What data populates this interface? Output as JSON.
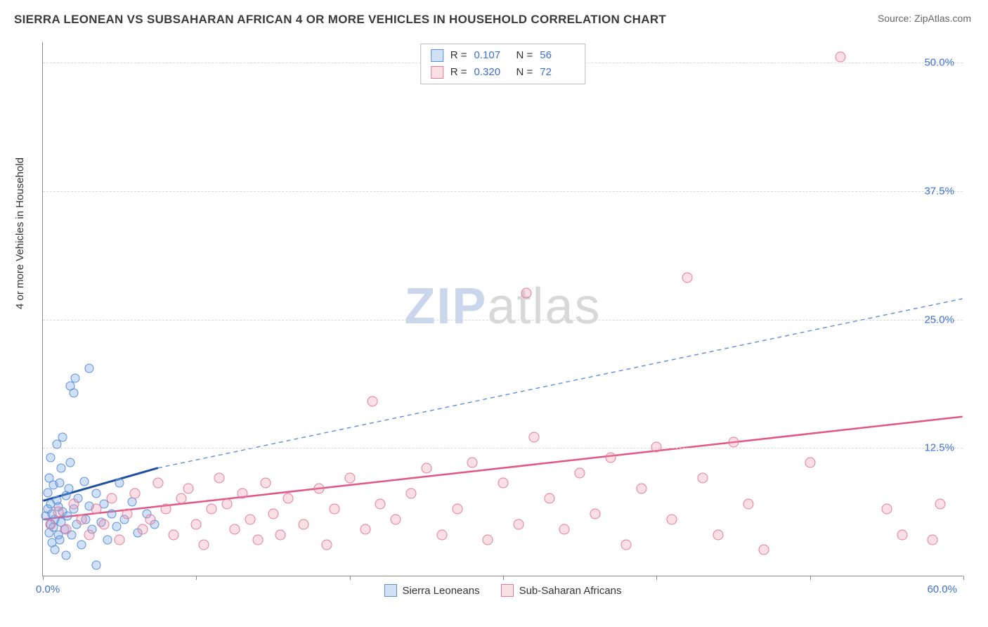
{
  "title": "SIERRA LEONEAN VS SUBSAHARAN AFRICAN 4 OR MORE VEHICLES IN HOUSEHOLD CORRELATION CHART",
  "source": "Source: ZipAtlas.com",
  "y_axis_label": "4 or more Vehicles in Household",
  "watermark": {
    "z": "Z",
    "ip": "IP",
    "atlas": "atlas"
  },
  "chart": {
    "type": "scatter",
    "xlim": [
      0,
      60
    ],
    "ylim": [
      0,
      52
    ],
    "x_min_label": "0.0%",
    "x_max_label": "60.0%",
    "x_ticks": [
      0,
      10,
      20,
      30,
      40,
      50,
      60
    ],
    "y_ticks": [
      {
        "v": 12.5,
        "label": "12.5%"
      },
      {
        "v": 25.0,
        "label": "25.0%"
      },
      {
        "v": 37.5,
        "label": "37.5%"
      },
      {
        "v": 50.0,
        "label": "50.0%"
      }
    ],
    "grid_color": "#d8d8d8",
    "background": "#ffffff",
    "series": [
      {
        "name": "Sierra Leoneans",
        "fill": "rgba(120,165,230,0.35)",
        "stroke": "#5a8fd8",
        "r_value": "0.107",
        "n_value": "56",
        "trend": {
          "solid": {
            "x1": 0,
            "y1": 7.3,
            "x2": 7.5,
            "y2": 10.5,
            "color": "#1e4fa3",
            "width": 3
          },
          "dashed": {
            "x1": 7.5,
            "y1": 10.5,
            "x2": 60,
            "y2": 27.0,
            "color": "#5a8fd8",
            "width": 1.4,
            "dash": "6 5"
          }
        },
        "points": [
          [
            0.2,
            5.8
          ],
          [
            0.3,
            8.1
          ],
          [
            0.3,
            6.5
          ],
          [
            0.4,
            4.2
          ],
          [
            0.4,
            9.5
          ],
          [
            0.5,
            7.0
          ],
          [
            0.5,
            5.0
          ],
          [
            0.5,
            11.5
          ],
          [
            0.6,
            3.2
          ],
          [
            0.6,
            6.0
          ],
          [
            0.7,
            4.7
          ],
          [
            0.7,
            8.8
          ],
          [
            0.8,
            2.5
          ],
          [
            0.8,
            5.5
          ],
          [
            0.9,
            7.3
          ],
          [
            0.9,
            12.8
          ],
          [
            1.0,
            4.0
          ],
          [
            1.0,
            6.7
          ],
          [
            1.1,
            9.0
          ],
          [
            1.1,
            3.5
          ],
          [
            1.2,
            5.2
          ],
          [
            1.2,
            10.5
          ],
          [
            1.3,
            6.2
          ],
          [
            1.3,
            13.5
          ],
          [
            1.4,
            4.5
          ],
          [
            1.5,
            7.8
          ],
          [
            1.5,
            2.0
          ],
          [
            1.6,
            5.8
          ],
          [
            1.7,
            8.5
          ],
          [
            1.8,
            11.0
          ],
          [
            1.8,
            18.5
          ],
          [
            1.9,
            4.0
          ],
          [
            2.0,
            6.5
          ],
          [
            2.0,
            17.8
          ],
          [
            2.1,
            19.2
          ],
          [
            2.2,
            5.0
          ],
          [
            2.3,
            7.5
          ],
          [
            2.5,
            3.0
          ],
          [
            2.7,
            9.2
          ],
          [
            2.8,
            5.5
          ],
          [
            3.0,
            6.8
          ],
          [
            3.0,
            20.2
          ],
          [
            3.2,
            4.5
          ],
          [
            3.5,
            8.0
          ],
          [
            3.5,
            1.0
          ],
          [
            3.8,
            5.2
          ],
          [
            4.0,
            7.0
          ],
          [
            4.2,
            3.5
          ],
          [
            4.5,
            6.0
          ],
          [
            4.8,
            4.8
          ],
          [
            5.0,
            9.0
          ],
          [
            5.3,
            5.5
          ],
          [
            5.8,
            7.2
          ],
          [
            6.2,
            4.2
          ],
          [
            6.8,
            6.0
          ],
          [
            7.3,
            5.0
          ]
        ]
      },
      {
        "name": "Sub-Saharan Africans",
        "fill": "rgba(240,150,175,0.30)",
        "stroke": "#e47a9a",
        "r_value": "0.320",
        "n_value": "72",
        "trend": {
          "solid": {
            "x1": 0,
            "y1": 5.5,
            "x2": 60,
            "y2": 15.5,
            "color": "#e25585",
            "width": 2.5
          }
        },
        "points": [
          [
            0.5,
            5.0
          ],
          [
            1.0,
            6.2
          ],
          [
            1.5,
            4.5
          ],
          [
            2.0,
            7.0
          ],
          [
            2.5,
            5.5
          ],
          [
            3.0,
            4.0
          ],
          [
            3.5,
            6.5
          ],
          [
            4.0,
            5.0
          ],
          [
            4.5,
            7.5
          ],
          [
            5.0,
            3.5
          ],
          [
            5.5,
            6.0
          ],
          [
            6.0,
            8.0
          ],
          [
            6.5,
            4.5
          ],
          [
            7.0,
            5.5
          ],
          [
            7.5,
            9.0
          ],
          [
            8.0,
            6.5
          ],
          [
            8.5,
            4.0
          ],
          [
            9.0,
            7.5
          ],
          [
            9.5,
            8.5
          ],
          [
            10.0,
            5.0
          ],
          [
            10.5,
            3.0
          ],
          [
            11.0,
            6.5
          ],
          [
            11.5,
            9.5
          ],
          [
            12.0,
            7.0
          ],
          [
            12.5,
            4.5
          ],
          [
            13.0,
            8.0
          ],
          [
            13.5,
            5.5
          ],
          [
            14.0,
            3.5
          ],
          [
            14.5,
            9.0
          ],
          [
            15.0,
            6.0
          ],
          [
            15.5,
            4.0
          ],
          [
            16.0,
            7.5
          ],
          [
            17.0,
            5.0
          ],
          [
            18.0,
            8.5
          ],
          [
            18.5,
            3.0
          ],
          [
            19.0,
            6.5
          ],
          [
            20.0,
            9.5
          ],
          [
            21.0,
            4.5
          ],
          [
            21.5,
            17.0
          ],
          [
            22.0,
            7.0
          ],
          [
            23.0,
            5.5
          ],
          [
            24.0,
            8.0
          ],
          [
            25.0,
            10.5
          ],
          [
            26.0,
            4.0
          ],
          [
            27.0,
            6.5
          ],
          [
            28.0,
            11.0
          ],
          [
            29.0,
            3.5
          ],
          [
            30.0,
            9.0
          ],
          [
            31.0,
            5.0
          ],
          [
            31.5,
            27.5
          ],
          [
            32.0,
            13.5
          ],
          [
            33.0,
            7.5
          ],
          [
            34.0,
            4.5
          ],
          [
            35.0,
            10.0
          ],
          [
            36.0,
            6.0
          ],
          [
            37.0,
            11.5
          ],
          [
            38.0,
            3.0
          ],
          [
            39.0,
            8.5
          ],
          [
            40.0,
            12.5
          ],
          [
            41.0,
            5.5
          ],
          [
            42.0,
            29.0
          ],
          [
            43.0,
            9.5
          ],
          [
            44.0,
            4.0
          ],
          [
            45.0,
            13.0
          ],
          [
            46.0,
            7.0
          ],
          [
            47.0,
            2.5
          ],
          [
            50.0,
            11.0
          ],
          [
            52.0,
            50.5
          ],
          [
            55.0,
            6.5
          ],
          [
            56.0,
            4.0
          ],
          [
            58.0,
            3.5
          ],
          [
            58.5,
            7.0
          ]
        ]
      }
    ]
  },
  "legend_top": {
    "r_label": "R =",
    "n_label": "N ="
  }
}
